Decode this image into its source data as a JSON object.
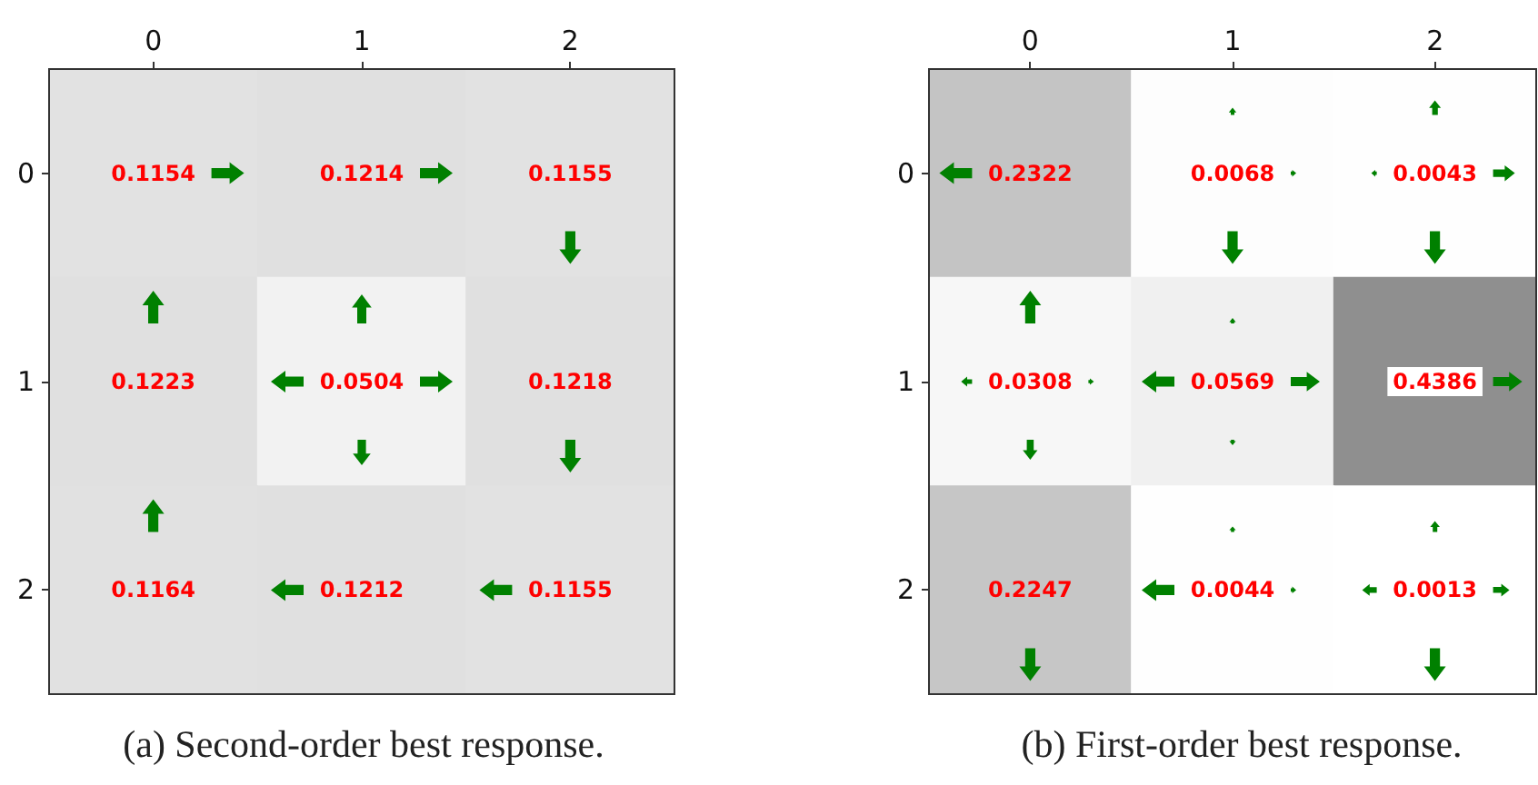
{
  "chart_data": [
    {
      "type": "heatmap",
      "title": "(a) Second-order best response.",
      "categories": [
        "0",
        "1",
        "2"
      ],
      "y_categories": [
        "0",
        "1",
        "2"
      ],
      "cells": [
        [
          0.1154,
          0.1214,
          0.1155
        ],
        [
          0.1223,
          0.0504,
          0.1218
        ],
        [
          0.1164,
          0.1212,
          0.1155
        ]
      ],
      "data_labels": true
    },
    {
      "type": "heatmap",
      "title": "(b) First-order best response.",
      "categories": [
        "0",
        "1",
        "2"
      ],
      "y_categories": [
        "0",
        "1",
        "2"
      ],
      "cells": [
        [
          0.2322,
          0.0068,
          0.0043
        ],
        [
          0.0308,
          0.0569,
          0.4386
        ],
        [
          0.2247,
          0.0044,
          0.0013
        ]
      ],
      "data_labels": true
    }
  ]
}
